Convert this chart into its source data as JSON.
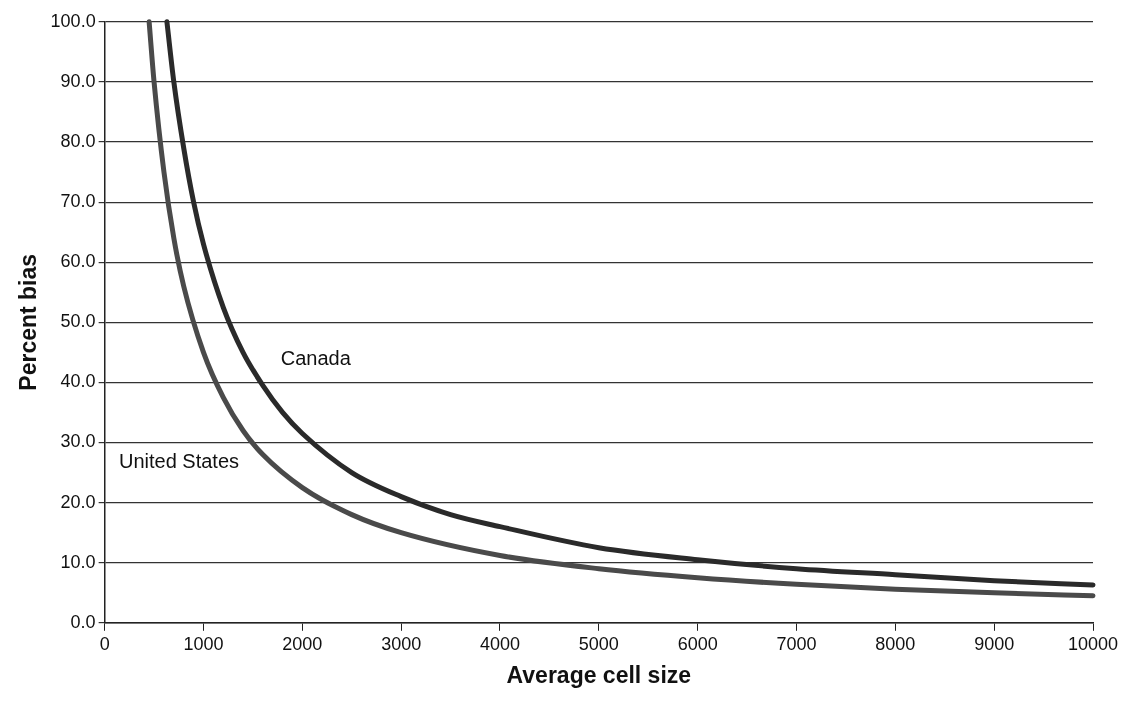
{
  "chart_data": {
    "type": "line",
    "xlabel": "Average cell size",
    "ylabel": "Percent bias",
    "xlim": [
      0,
      10000
    ],
    "xticks": [
      0,
      1000,
      2000,
      3000,
      4000,
      5000,
      6000,
      7000,
      8000,
      9000,
      10000
    ],
    "ylim": [
      0,
      100
    ],
    "yticks": [
      {
        "value": 0,
        "label": "0.0"
      },
      {
        "value": 10,
        "label": "10.0"
      },
      {
        "value": 20,
        "label": "20.0"
      },
      {
        "value": 30,
        "label": "30.0"
      },
      {
        "value": 40,
        "label": "40.0"
      },
      {
        "value": 50,
        "label": "50.0"
      },
      {
        "value": 60,
        "label": "60.0"
      },
      {
        "value": 70,
        "label": "70.0"
      },
      {
        "value": 80,
        "label": "80.0"
      },
      {
        "value": 90,
        "label": "90.0"
      },
      {
        "value": 100,
        "label": "100.0"
      }
    ],
    "grid": "y",
    "marker": "none",
    "line_style": "solid",
    "series": [
      {
        "name": "Canada",
        "color": "#2a2a2a",
        "x": [
          630,
          700,
          800,
          900,
          1000,
          1200,
          1400,
          1600,
          1800,
          2000,
          2500,
          3000,
          3500,
          4000,
          5000,
          6000,
          7000,
          8000,
          9000,
          10000
        ],
        "values": [
          100,
          90,
          79,
          70,
          63,
          52.5,
          45,
          39.5,
          35,
          31.5,
          25,
          21,
          18,
          16,
          12.5,
          10.5,
          9,
          8,
          7,
          6.3
        ]
      },
      {
        "name": "United States",
        "color": "#4a4a4a",
        "x": [
          450,
          500,
          600,
          700,
          800,
          1000,
          1200,
          1400,
          1600,
          2000,
          2500,
          3000,
          4000,
          5000,
          6000,
          7000,
          8000,
          9000,
          10000
        ],
        "values": [
          100,
          90,
          75,
          64,
          56,
          45,
          37.5,
          32,
          28,
          22.5,
          18,
          15,
          11.2,
          9,
          7.5,
          6.4,
          5.6,
          5,
          4.5
        ]
      }
    ]
  }
}
